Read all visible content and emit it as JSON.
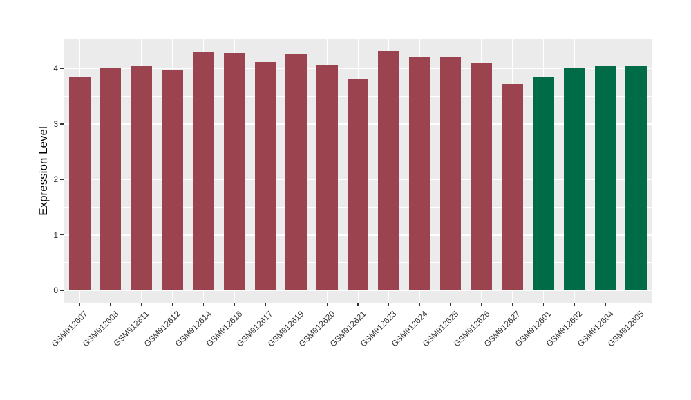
{
  "chart_data": {
    "type": "bar",
    "title": "",
    "xlabel": "",
    "ylabel": "Expression Level",
    "y_ticks": [
      0,
      1,
      2,
      3,
      4
    ],
    "ylim": [
      -0.22,
      4.53
    ],
    "grid": true,
    "legend": false,
    "panel_background": "#EBEBEB",
    "gridline_color": "#ffffff",
    "categories": [
      "GSM912607",
      "GSM912608",
      "GSM912611",
      "GSM912612",
      "GSM912614",
      "GSM912616",
      "GSM912617",
      "GSM912619",
      "GSM912620",
      "GSM912621",
      "GSM912623",
      "GSM912624",
      "GSM912625",
      "GSM912626",
      "GSM912627",
      "GSM912601",
      "GSM912602",
      "GSM912604",
      "GSM912605"
    ],
    "values": [
      3.85,
      4.02,
      4.06,
      3.98,
      4.3,
      4.28,
      4.12,
      4.25,
      4.07,
      3.8,
      4.31,
      4.22,
      4.21,
      4.11,
      3.72,
      3.85,
      4.0,
      4.06,
      4.04
    ],
    "groups": [
      "A",
      "A",
      "A",
      "A",
      "A",
      "A",
      "A",
      "A",
      "A",
      "A",
      "A",
      "A",
      "A",
      "A",
      "A",
      "B",
      "B",
      "B",
      "B"
    ],
    "group_colors": {
      "A": "#9B4450",
      "B": "#006B47"
    }
  }
}
